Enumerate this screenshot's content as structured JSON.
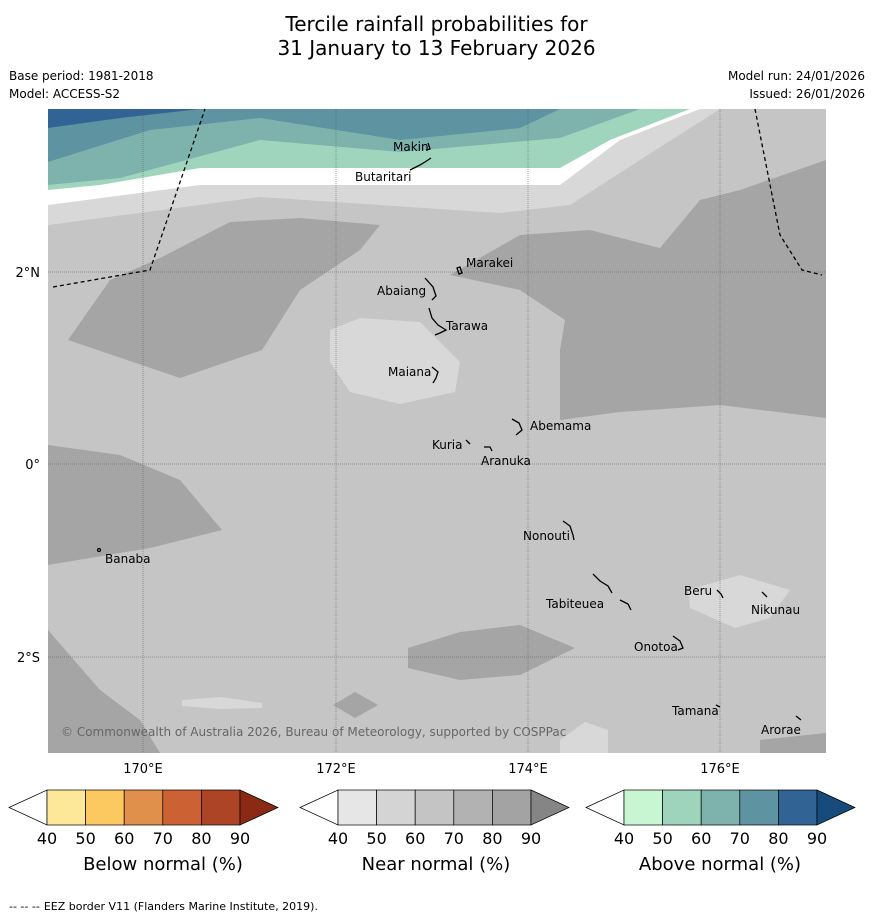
{
  "title_line1": "Tercile rainfall probabilities for",
  "title_line2": "31 January to 13 February 2026",
  "base_period": "Base period: 1981-2018",
  "model": "Model: ACCESS-S2",
  "model_run": "Model run: 24/01/2026",
  "issued": "Issued: 26/01/2026",
  "copyright": "© Commonwealth of Australia 2026, Bureau of Meteorology, supported by COSPPac",
  "lat_labels": [
    "2°N",
    "0°",
    "2°S"
  ],
  "lon_labels_top": [
    "170°E",
    "174°E",
    "176°E"
  ],
  "lon_label_mid": "172°E",
  "islands": [
    "Makin",
    "Butaritari",
    "Marakei",
    "Abaiang",
    "Tarawa",
    "Maiana",
    "Abemama",
    "Kuria",
    "Aranuka",
    "Nonouti",
    "Banaba",
    "Beru",
    "Tabiteuea",
    "Nikunau",
    "Onotoa",
    "Tamana",
    "Arorae"
  ],
  "colorbars": [
    {
      "name": "Below normal (%)",
      "ticks": [
        "40",
        "50",
        "60",
        "70",
        "80",
        "90"
      ],
      "colors": [
        "#ffffff",
        "#fde89a",
        "#fcc860",
        "#e0904a",
        "#cc6233",
        "#ad4425",
        "#8b2a14"
      ]
    },
    {
      "name": "Near normal (%)",
      "ticks": [
        "40",
        "50",
        "60",
        "70",
        "80",
        "90"
      ],
      "colors": [
        "#ffffff",
        "#e6e6e6",
        "#d4d4d4",
        "#c4c4c4",
        "#b2b2b2",
        "#a3a3a3",
        "#858585"
      ]
    },
    {
      "name": "Above normal (%)",
      "ticks": [
        "40",
        "50",
        "60",
        "70",
        "80",
        "90"
      ],
      "colors": [
        "#ffffff",
        "#c8f6d2",
        "#9dd4bb",
        "#7eb3ad",
        "#5e93a1",
        "#316494",
        "#174b7c"
      ]
    }
  ],
  "footnote_dashes": "--  --  --",
  "footnote": "EEZ border V11 (Flanders Marine Institute, 2019)."
}
